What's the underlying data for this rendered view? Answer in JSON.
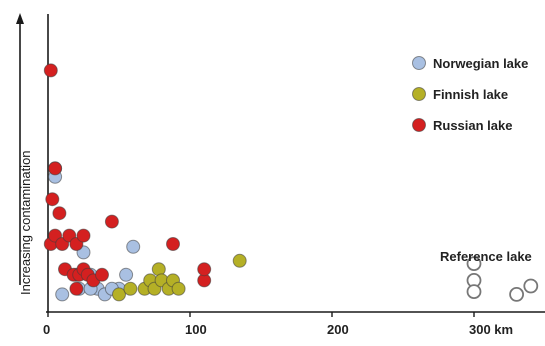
{
  "chart_data": {
    "type": "scatter",
    "ylabel": "Increasing contamination",
    "xlim": [
      0,
      350
    ],
    "ylim": [
      0,
      100
    ],
    "x_ticks": [
      0,
      100,
      200,
      300
    ],
    "x_tick_labels": [
      "0",
      "100",
      "200",
      "300 km"
    ],
    "grid": false,
    "legend_position": "top-right",
    "annotation": "Reference lake",
    "series": [
      {
        "name": "Norwegian lake",
        "color": "#a9c0e2",
        "points": [
          [
            5,
            47
          ],
          [
            5,
            44
          ],
          [
            10,
            2
          ],
          [
            20,
            9
          ],
          [
            22,
            4
          ],
          [
            25,
            17
          ],
          [
            30,
            9
          ],
          [
            35,
            4
          ],
          [
            40,
            2
          ],
          [
            50,
            4
          ],
          [
            55,
            9
          ],
          [
            60,
            19
          ],
          [
            30,
            4
          ],
          [
            45,
            4
          ]
        ]
      },
      {
        "name": "Finnish lake",
        "color": "#b5b026",
        "points": [
          [
            50,
            2
          ],
          [
            58,
            4
          ],
          [
            68,
            4
          ],
          [
            72,
            7
          ],
          [
            75,
            4
          ],
          [
            78,
            11
          ],
          [
            80,
            7
          ],
          [
            85,
            4
          ],
          [
            88,
            7
          ],
          [
            92,
            4
          ],
          [
            135,
            14
          ]
        ]
      },
      {
        "name": "Russian lake",
        "color": "#d42020",
        "points": [
          [
            2,
            82
          ],
          [
            5,
            47
          ],
          [
            3,
            36
          ],
          [
            8,
            31
          ],
          [
            2,
            20
          ],
          [
            5,
            23
          ],
          [
            10,
            20
          ],
          [
            15,
            23
          ],
          [
            20,
            20
          ],
          [
            25,
            23
          ],
          [
            12,
            11
          ],
          [
            18,
            9
          ],
          [
            22,
            9
          ],
          [
            25,
            11
          ],
          [
            28,
            9
          ],
          [
            32,
            7
          ],
          [
            38,
            9
          ],
          [
            45,
            28
          ],
          [
            88,
            20
          ],
          [
            110,
            7
          ],
          [
            110,
            11
          ],
          [
            20,
            4
          ]
        ]
      },
      {
        "name": "Reference lake",
        "color": "#ffffff",
        "points": [
          [
            300,
            13
          ],
          [
            300,
            7
          ],
          [
            300,
            3
          ],
          [
            330,
            2
          ],
          [
            340,
            5
          ]
        ]
      }
    ]
  }
}
